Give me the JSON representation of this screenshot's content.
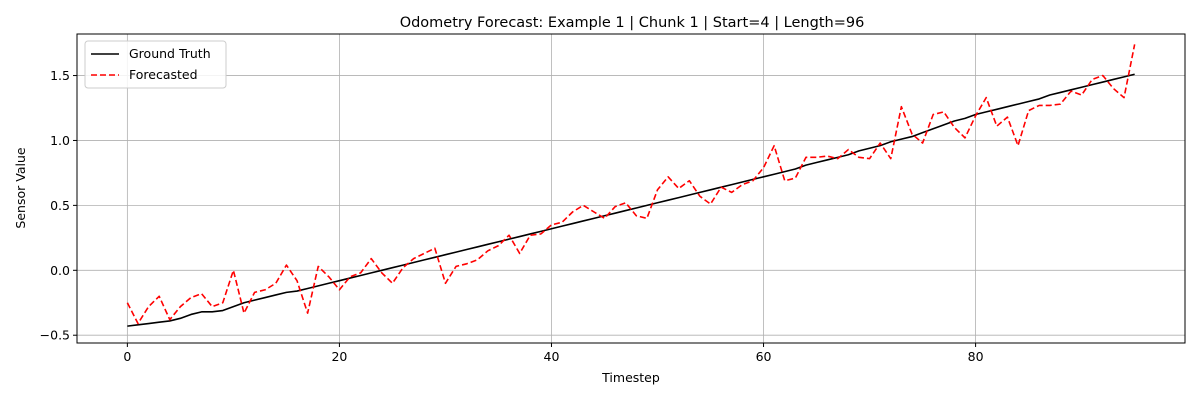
{
  "chart_data": {
    "type": "line",
    "title": "Odometry Forecast: Example 1 | Chunk 1 | Start=4 | Length=96",
    "xlabel": "Timestep",
    "ylabel": "Sensor Value",
    "xlim": [
      -4.75,
      99.75
    ],
    "ylim": [
      -0.56,
      1.82
    ],
    "xticks": [
      0,
      20,
      40,
      60,
      80
    ],
    "yticks": [
      -0.5,
      0.0,
      0.5,
      1.0,
      1.5
    ],
    "ytick_labels": [
      "−0.5",
      "0.0",
      "0.5",
      "1.0",
      "1.5"
    ],
    "grid": true,
    "legend_position": "upper-left",
    "series": [
      {
        "name": "Ground Truth",
        "color": "#000000",
        "style": "solid",
        "x_start": 0,
        "values": [
          -0.43,
          -0.42,
          -0.41,
          -0.4,
          -0.39,
          -0.37,
          -0.34,
          -0.32,
          -0.32,
          -0.31,
          -0.28,
          -0.25,
          -0.23,
          -0.21,
          -0.19,
          -0.17,
          -0.16,
          -0.14,
          -0.12,
          -0.1,
          -0.08,
          -0.06,
          -0.04,
          -0.02,
          0.0,
          0.02,
          0.04,
          0.06,
          0.08,
          0.1,
          0.12,
          0.14,
          0.16,
          0.18,
          0.2,
          0.22,
          0.24,
          0.26,
          0.28,
          0.3,
          0.32,
          0.34,
          0.36,
          0.38,
          0.4,
          0.42,
          0.44,
          0.46,
          0.48,
          0.5,
          0.52,
          0.54,
          0.56,
          0.58,
          0.6,
          0.62,
          0.64,
          0.66,
          0.68,
          0.7,
          0.72,
          0.74,
          0.76,
          0.78,
          0.81,
          0.83,
          0.85,
          0.87,
          0.89,
          0.92,
          0.94,
          0.96,
          0.99,
          1.01,
          1.03,
          1.06,
          1.09,
          1.12,
          1.15,
          1.17,
          1.2,
          1.22,
          1.24,
          1.26,
          1.28,
          1.3,
          1.32,
          1.35,
          1.37,
          1.39,
          1.41,
          1.43,
          1.45,
          1.47,
          1.49,
          1.51
        ]
      },
      {
        "name": "Forecasted",
        "color": "#ff0000",
        "style": "dashed",
        "x_start": 0,
        "values": [
          -0.25,
          -0.41,
          -0.28,
          -0.2,
          -0.38,
          -0.28,
          -0.21,
          -0.18,
          -0.28,
          -0.25,
          0.0,
          -0.33,
          -0.17,
          -0.15,
          -0.1,
          0.04,
          -0.08,
          -0.33,
          0.03,
          -0.05,
          -0.15,
          -0.05,
          -0.02,
          0.09,
          -0.02,
          -0.1,
          0.02,
          0.09,
          0.13,
          0.17,
          -0.1,
          0.03,
          0.05,
          0.08,
          0.15,
          0.19,
          0.27,
          0.13,
          0.27,
          0.28,
          0.35,
          0.37,
          0.45,
          0.5,
          0.45,
          0.4,
          0.49,
          0.52,
          0.42,
          0.4,
          0.62,
          0.72,
          0.63,
          0.69,
          0.57,
          0.51,
          0.64,
          0.6,
          0.66,
          0.69,
          0.79,
          0.96,
          0.69,
          0.71,
          0.87,
          0.87,
          0.88,
          0.86,
          0.93,
          0.87,
          0.86,
          0.98,
          0.86,
          1.26,
          1.05,
          0.98,
          1.2,
          1.22,
          1.1,
          1.02,
          1.19,
          1.33,
          1.11,
          1.18,
          0.96,
          1.23,
          1.27,
          1.27,
          1.28,
          1.38,
          1.35,
          1.47,
          1.5,
          1.4,
          1.33,
          1.74
        ]
      }
    ]
  }
}
